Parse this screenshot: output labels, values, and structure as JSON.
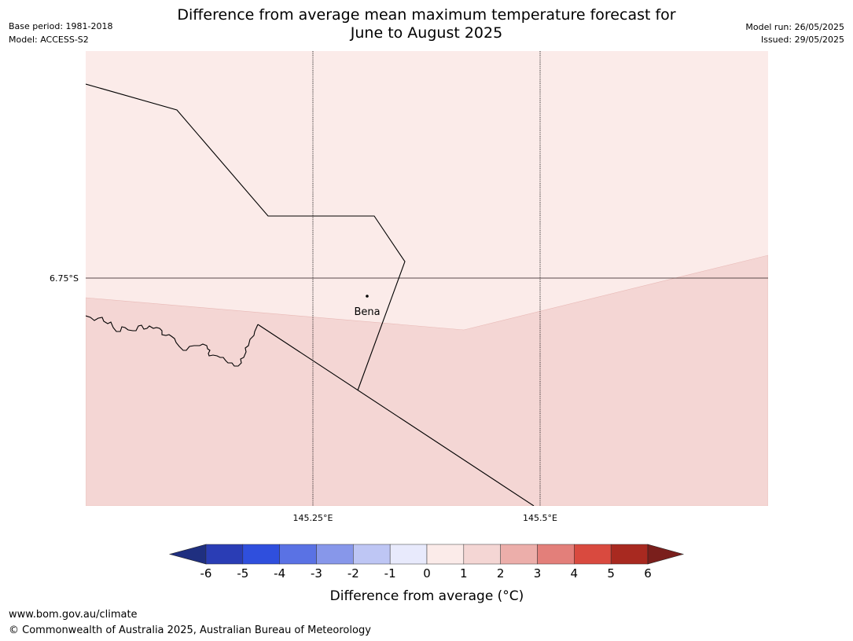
{
  "header": {
    "title_line1": "Difference from average mean maximum temperature forecast for",
    "title_line2": "June to August 2025",
    "base_period": "Base period: 1981-2018",
    "model": "Model: ACCESS-S2",
    "model_run": "Model run: 26/05/2025",
    "issued": "Issued: 29/05/2025"
  },
  "map": {
    "lat_label": "6.75°S",
    "lon_labels": [
      "145.25°E",
      "145.5°E"
    ],
    "place": {
      "name": "Bena"
    },
    "anomaly_category_north": "0 to 1",
    "anomaly_category_south": "1 to 2",
    "colors": {
      "zone_0_1": "#fbebe9",
      "zone_1_2": "#f4d6d4",
      "gridline": "#000000",
      "border": "#000000"
    }
  },
  "colorbar": {
    "label": "Difference from average (°C)",
    "ticks": [
      "-6",
      "-5",
      "-4",
      "-3",
      "-2",
      "-1",
      "0",
      "1",
      "2",
      "3",
      "4",
      "5",
      "6"
    ],
    "colors": [
      "#1f2f80",
      "#2a3db5",
      "#2f4fdd",
      "#5a72e4",
      "#8797ea",
      "#bec6f4",
      "#e8eafc",
      "#fbebe9",
      "#f4d6d4",
      "#ecaeaa",
      "#e37f7a",
      "#d94a3f",
      "#a82920",
      "#7a1f1c"
    ]
  },
  "footer": {
    "url": "www.bom.gov.au/climate",
    "copyright": "© Commonwealth of Australia 2025, Australian Bureau of Meteorology"
  }
}
